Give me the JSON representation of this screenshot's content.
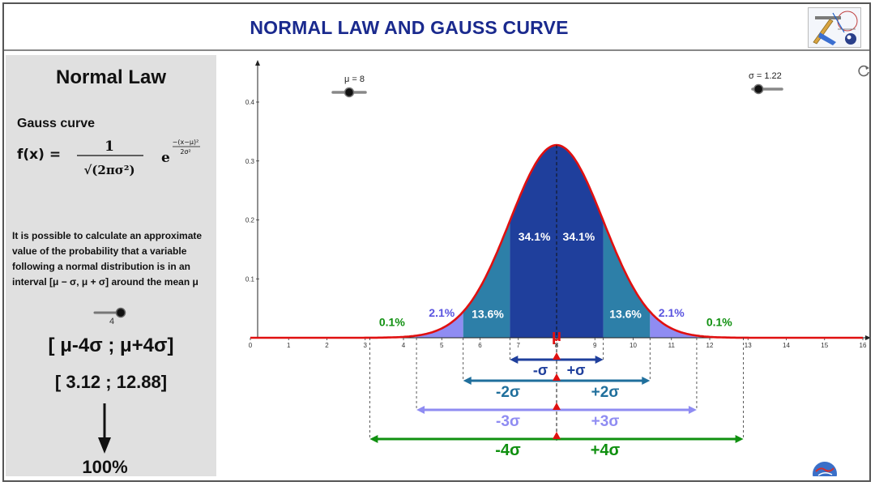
{
  "app": {
    "title": "NORMAL LAW AND GAUSS CURVE",
    "logo_icon": "geometry-tools-logo"
  },
  "sidebar": {
    "title": "Normal Law",
    "gauss_caption": "Gauss curve",
    "formula": {
      "lhs": "f(x) =",
      "numerator": "1",
      "denominator": "√(2πσ²)",
      "base": "e",
      "exp_numerator": "−(x−μ)²",
      "exp_denominator": "2σ²"
    },
    "description": "It is possible to calculate an approximate value of the probability that a variable following a normal distribution is in an interval [μ − σ, μ + σ] around the mean μ",
    "k_slider": {
      "value": 4,
      "label": "4",
      "min": 1,
      "max": 4
    },
    "interval_symbolic": "[ μ-4σ ; μ+4σ]",
    "interval_numeric": "[ 3.12 ; 12.88]",
    "percentage": "100%"
  },
  "graph": {
    "mu_slider": {
      "label": "μ = 8",
      "value": 8,
      "fraction": 0.5
    },
    "sigma_slider": {
      "label": "σ = 1.22",
      "value": 1.22,
      "fraction": 0.2
    },
    "reset_icon": "reset-icon",
    "globe_icon": "globe-icon",
    "mu_marker": "μ",
    "colors": {
      "curve": "#e01010",
      "band1": "#1f3f9c",
      "band2": "#2d7fa8",
      "band3": "#8f8cf2",
      "band4": "#109010",
      "marker": "#e01010"
    },
    "chart_data": {
      "type": "area",
      "mu": 8,
      "sigma": 1.22,
      "x_range": [
        0,
        16
      ],
      "y_range": [
        0,
        0.4
      ],
      "x_ticks": [
        0,
        1,
        2,
        3,
        4,
        5,
        6,
        7,
        8,
        9,
        10,
        11,
        12,
        13,
        14,
        15,
        16
      ],
      "y_ticks": [
        0.1,
        0.2,
        0.3,
        0.4
      ],
      "band_labels": [
        {
          "text": "34.1%",
          "x": 7.42,
          "y": 0.165,
          "color": "#ffffff"
        },
        {
          "text": "34.1%",
          "x": 8.58,
          "y": 0.165,
          "color": "#ffffff"
        },
        {
          "text": "13.6%",
          "x": 6.2,
          "y": 0.034,
          "color": "#ffffff"
        },
        {
          "text": "13.6%",
          "x": 9.8,
          "y": 0.034,
          "color": "#ffffff"
        },
        {
          "text": "2.1%",
          "x": 5.0,
          "y": 0.036,
          "color": "#5a54e0"
        },
        {
          "text": "2.1%",
          "x": 11.0,
          "y": 0.036,
          "color": "#5a54e0"
        },
        {
          "text": "0.1%",
          "x": 3.7,
          "y": 0.02,
          "color": "#109010"
        },
        {
          "text": "0.1%",
          "x": 12.25,
          "y": 0.02,
          "color": "#109010"
        }
      ],
      "sigma_intervals": [
        {
          "k": 1,
          "left_label": "-σ",
          "right_label": "+σ",
          "color": "#1f3f9c"
        },
        {
          "k": 2,
          "left_label": "-2σ",
          "right_label": "+2σ",
          "color": "#1f6f9c"
        },
        {
          "k": 3,
          "left_label": "-3σ",
          "right_label": "+3σ",
          "color": "#8f8cf2"
        },
        {
          "k": 4,
          "left_label": "-4σ",
          "right_label": "+4σ",
          "color": "#109010"
        }
      ]
    }
  }
}
